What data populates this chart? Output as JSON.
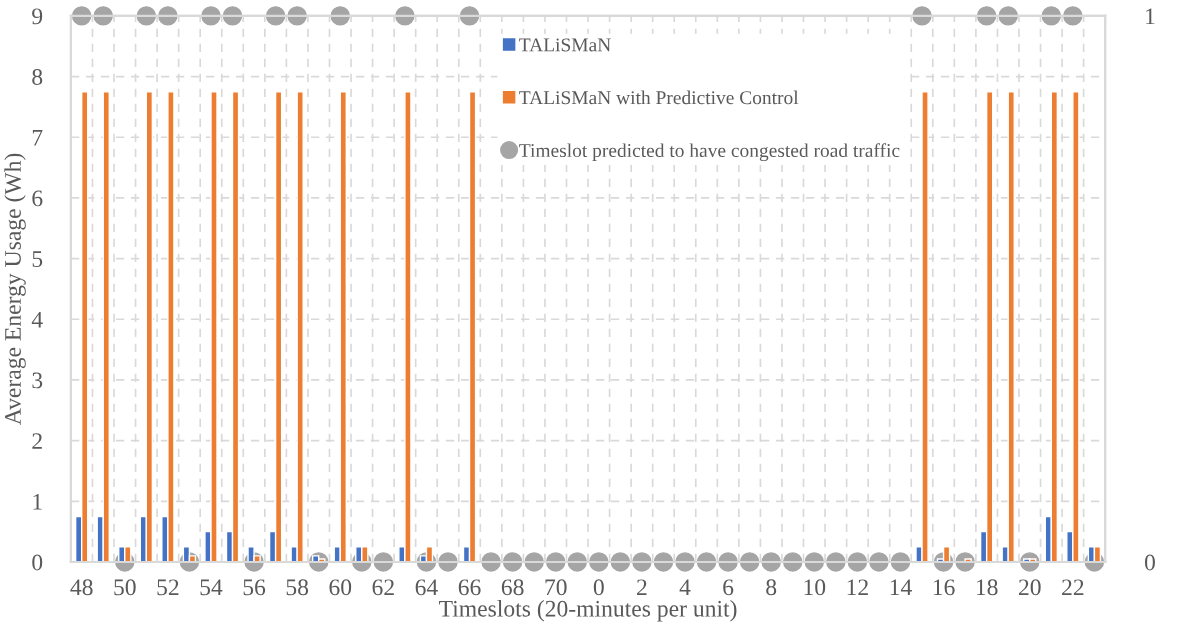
{
  "chart_data": {
    "type": "bar",
    "xlabel": "Timeslots (20-minutes per unit)",
    "ylabel": "Average Energy Usage (Wh)",
    "categories": [
      "48",
      null,
      "50",
      null,
      "52",
      null,
      "54",
      null,
      "56",
      null,
      "58",
      null,
      "60",
      null,
      "62",
      null,
      "64",
      null,
      "66",
      null,
      "68",
      null,
      "70",
      null,
      "0",
      null,
      "2",
      null,
      "4",
      null,
      "6",
      null,
      "8",
      null,
      "10",
      null,
      "12",
      null,
      "14",
      null,
      "16",
      null,
      "18",
      null,
      "20",
      null,
      "22",
      null
    ],
    "series": [
      {
        "name": "TALiSMaN",
        "color": "#4472c4",
        "values": [
          0.75,
          0.75,
          0.25,
          0.75,
          0.75,
          0.25,
          0.5,
          0.5,
          0.25,
          0.5,
          0.25,
          0.1,
          0.25,
          0.25,
          0,
          0.25,
          0.1,
          0,
          0.25,
          0,
          0,
          0,
          0,
          0,
          0,
          0,
          0,
          0,
          0,
          0,
          0,
          0,
          0,
          0,
          0,
          0,
          0,
          0,
          0,
          0.25,
          0.05,
          0,
          0.5,
          0.25,
          0.05,
          0.75,
          0.5,
          0.25
        ]
      },
      {
        "name": "TALiSMaN with Predictive Control",
        "color": "#ed7d31",
        "values": [
          7.75,
          7.75,
          0.25,
          7.75,
          7.75,
          0.1,
          7.75,
          7.75,
          0.1,
          7.75,
          7.75,
          0.05,
          7.75,
          0.25,
          0,
          7.75,
          0.25,
          0,
          7.75,
          0,
          0,
          0,
          0,
          0,
          0,
          0,
          0,
          0,
          0,
          0,
          0,
          0,
          0,
          0,
          0,
          0,
          0,
          0,
          0,
          7.75,
          0.25,
          0.05,
          7.75,
          7.75,
          0.05,
          7.75,
          7.75,
          0.25
        ]
      },
      {
        "name": "Timeslot predicted to have congested road traffic",
        "color": "#a5a5a5",
        "type": "scatter",
        "axis": "y2",
        "values": [
          1,
          1,
          0,
          1,
          1,
          0,
          1,
          1,
          0,
          1,
          1,
          0,
          1,
          0,
          0,
          1,
          0,
          0,
          1,
          0,
          0,
          0,
          0,
          0,
          0,
          0,
          0,
          0,
          0,
          0,
          0,
          0,
          0,
          0,
          0,
          0,
          0,
          0,
          0,
          1,
          0,
          0,
          1,
          1,
          0,
          1,
          1,
          0
        ]
      }
    ],
    "ylim": [
      0,
      9
    ],
    "yticks": [
      0,
      1,
      2,
      3,
      4,
      5,
      6,
      7,
      8,
      9
    ],
    "y2lim": [
      0,
      1
    ],
    "y2ticks": [
      0,
      1
    ],
    "grid": true,
    "legend": "top",
    "marker": "circle"
  }
}
